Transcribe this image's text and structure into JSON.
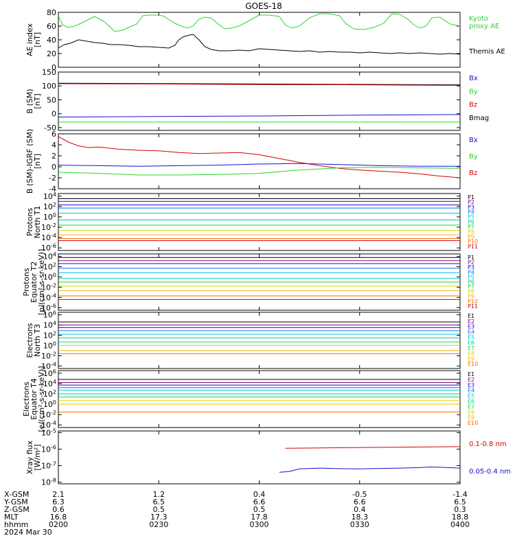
{
  "title": "GOES-18",
  "colors": {
    "black": "#000000",
    "red": "#d40000",
    "green": "#2ad52a",
    "blue": "#1010d0",
    "p_colors": [
      "#000000",
      "#7a007a",
      "#2a00c8",
      "#0070ff",
      "#00c0e0",
      "#00c8a0",
      "#20d040",
      "#d8d800",
      "#f0b400",
      "#ff6a00",
      "#d40000"
    ],
    "xray_red": "#d40000",
    "xray_blue": "#1010d0"
  },
  "time_axis": {
    "range_hours": [
      2.0,
      4.0
    ],
    "ticks_hours": [
      2.0,
      2.5,
      3.0,
      3.5,
      4.0
    ],
    "rows": [
      {
        "label": "X-GSM",
        "values": [
          "2.1",
          "1.2",
          "0.4",
          "-0.5",
          "-1.4"
        ]
      },
      {
        "label": "Y-GSM",
        "values": [
          "6.3",
          "6.5",
          "6.6",
          "6.6",
          "6.5"
        ]
      },
      {
        "label": "Z-GSM",
        "values": [
          "0.6",
          "0.5",
          "0.5",
          "0.4",
          "0.3"
        ]
      },
      {
        "label": "MLT",
        "values": [
          "16.8",
          "17.3",
          "17.8",
          "18.3",
          "18.8"
        ]
      },
      {
        "label": "hhmm",
        "values": [
          "0200",
          "0230",
          "0300",
          "0330",
          "0400"
        ]
      }
    ],
    "date": "2024 Mar 30"
  },
  "chart_data": [
    {
      "type": "line",
      "ylabel": "AE index\n[nT]",
      "ylim": [
        0,
        80
      ],
      "yticks": [
        0,
        20,
        40,
        60,
        80
      ],
      "yticklabels": [
        "0",
        "20",
        "40",
        "60",
        "80"
      ],
      "legend": [
        {
          "text": "Kyoto",
          "color": "#2ad52a"
        },
        {
          "text": "proxy AE",
          "color": "#2ad52a"
        },
        {
          "text": "Themis AE",
          "color": "#000000"
        }
      ],
      "series": [
        {
          "name": "Kyoto proxy AE",
          "color": "#2ad52a",
          "x": [
            2.0,
            2.02,
            2.05,
            2.08,
            2.12,
            2.18,
            2.23,
            2.26,
            2.28,
            2.3,
            2.32,
            2.35,
            2.39,
            2.42,
            2.45,
            2.48,
            2.52,
            2.58,
            2.64,
            2.67,
            2.7,
            2.73,
            2.76,
            2.8,
            2.83,
            2.86,
            2.9,
            2.95,
            3.0,
            3.05,
            3.1,
            3.13,
            3.16,
            3.2,
            3.25,
            3.3,
            3.35,
            3.4,
            3.43,
            3.47,
            3.52,
            3.57,
            3.62,
            3.66,
            3.7,
            3.74,
            3.77,
            3.8,
            3.83,
            3.86,
            3.9,
            3.95,
            4.0
          ],
          "y": [
            75,
            62,
            58,
            60,
            65,
            74,
            66,
            58,
            52,
            53,
            54,
            58,
            63,
            75,
            76,
            76,
            75,
            64,
            57,
            60,
            70,
            73,
            72,
            62,
            56,
            57,
            60,
            68,
            76,
            76,
            74,
            62,
            57,
            60,
            72,
            78,
            78,
            75,
            64,
            56,
            55,
            58,
            64,
            78,
            77,
            70,
            62,
            57,
            60,
            72,
            73,
            63,
            60
          ]
        },
        {
          "name": "Themis AE",
          "color": "#000000",
          "x": [
            2.0,
            2.03,
            2.06,
            2.1,
            2.14,
            2.18,
            2.22,
            2.26,
            2.3,
            2.35,
            2.4,
            2.45,
            2.5,
            2.55,
            2.58,
            2.6,
            2.62,
            2.64,
            2.67,
            2.7,
            2.73,
            2.76,
            2.8,
            2.85,
            2.9,
            2.95,
            3.0,
            3.05,
            3.1,
            3.15,
            3.2,
            3.25,
            3.3,
            3.35,
            3.4,
            3.45,
            3.5,
            3.55,
            3.6,
            3.65,
            3.7,
            3.75,
            3.8,
            3.85,
            3.9,
            3.95,
            4.0
          ],
          "y": [
            28,
            33,
            35,
            40,
            38,
            36,
            35,
            33,
            33,
            32,
            30,
            30,
            29,
            28,
            32,
            40,
            44,
            46,
            48,
            40,
            30,
            26,
            24,
            24,
            25,
            24,
            27,
            26,
            25,
            24,
            23,
            24,
            22,
            23,
            22,
            22,
            21,
            22,
            21,
            20,
            21,
            20,
            21,
            20,
            19,
            20,
            19
          ]
        }
      ]
    },
    {
      "type": "line",
      "ylabel": "B (SM)\n[nT]",
      "ylim": [
        -60,
        150
      ],
      "yticks": [
        -50,
        0,
        50,
        100,
        150
      ],
      "yticklabels": [
        "-50",
        "0",
        "50",
        "100",
        "150"
      ],
      "legend": [
        {
          "text": "Bx",
          "color": "#1010d0"
        },
        {
          "text": "By",
          "color": "#2ad52a"
        },
        {
          "text": "Bz",
          "color": "#d40000"
        },
        {
          "text": "Bmag",
          "color": "#000000"
        }
      ],
      "series": [
        {
          "name": "Bmag",
          "color": "#000000",
          "x": [
            2.0,
            4.0
          ],
          "y": [
            110,
            104
          ]
        },
        {
          "name": "Bz",
          "color": "#d40000",
          "x": [
            2.0,
            2.5,
            3.0,
            3.5,
            4.0
          ],
          "y": [
            108,
            107,
            105,
            104,
            102
          ]
        },
        {
          "name": "Bx",
          "color": "#1010d0",
          "x": [
            2.0,
            2.5,
            3.0,
            3.5,
            4.0
          ],
          "y": [
            -12,
            -10,
            -8,
            -5,
            -3
          ]
        },
        {
          "name": "By",
          "color": "#2ad52a",
          "x": [
            2.0,
            4.0
          ],
          "y": [
            -30,
            -30
          ]
        }
      ]
    },
    {
      "type": "line",
      "ylabel": "B (SM)-IGRF (SM)\n[nT]",
      "ylim": [
        -4,
        6
      ],
      "yticks": [
        -4,
        -2,
        0,
        2,
        4,
        6
      ],
      "yticklabels": [
        "-4",
        "-2",
        "0",
        "2",
        "4",
        "6"
      ],
      "legend": [
        {
          "text": "Bx",
          "color": "#1010d0"
        },
        {
          "text": "By",
          "color": "#2ad52a"
        },
        {
          "text": "Bz",
          "color": "#d40000"
        }
      ],
      "series": [
        {
          "name": "Bz",
          "color": "#d40000",
          "x": [
            2.0,
            2.05,
            2.1,
            2.15,
            2.2,
            2.3,
            2.4,
            2.5,
            2.6,
            2.7,
            2.8,
            2.9,
            3.0,
            3.1,
            3.2,
            3.3,
            3.4,
            3.5,
            3.6,
            3.7,
            3.8,
            3.9,
            4.0
          ],
          "y": [
            5.5,
            4.5,
            3.8,
            3.5,
            3.6,
            3.2,
            3.0,
            2.9,
            2.6,
            2.4,
            2.5,
            2.6,
            2.2,
            1.5,
            0.8,
            0.2,
            -0.3,
            -0.6,
            -0.8,
            -1.0,
            -1.3,
            -1.7,
            -2.0
          ]
        },
        {
          "name": "Bx",
          "color": "#1010d0",
          "x": [
            2.0,
            2.2,
            2.4,
            2.6,
            2.8,
            3.0,
            3.2,
            3.4,
            3.6,
            3.8,
            4.0
          ],
          "y": [
            0.3,
            0.2,
            0.1,
            0.2,
            0.3,
            0.5,
            0.6,
            0.4,
            0.2,
            0.1,
            0.1
          ]
        },
        {
          "name": "By",
          "color": "#2ad52a",
          "x": [
            2.0,
            2.2,
            2.4,
            2.6,
            2.8,
            3.0,
            3.2,
            3.4,
            3.6,
            3.8,
            4.0
          ],
          "y": [
            -1.0,
            -1.2,
            -1.5,
            -1.5,
            -1.4,
            -1.2,
            -0.6,
            -0.2,
            -0.1,
            -0.2,
            -0.3
          ]
        }
      ]
    },
    {
      "type": "line",
      "log_y": true,
      "ylabel": "Protons\nNorth T1",
      "ylim": [
        -6.5,
        4.5
      ],
      "yticks": [
        4,
        2,
        0,
        -2,
        -4,
        -6
      ],
      "yticklabels": [
        "10^4",
        "10^2",
        "10^0",
        "10^-2",
        "10^-4",
        "10^-6"
      ],
      "legend": [
        "P1",
        "P2",
        "P3",
        "P4",
        "P5",
        "P6",
        "P7",
        "P8",
        "P9",
        "P10",
        "P11"
      ],
      "series_log10": [
        3.5,
        3.0,
        2.3,
        1.7,
        0.7,
        -0.6,
        -1.6,
        -2.6,
        -3.5,
        -4.2,
        -4.6
      ]
    },
    {
      "type": "line",
      "log_y": true,
      "ylabel": "Protons\nEquator T2\n[p/(cm²-s-sr-keV)]",
      "ylim": [
        -6.5,
        4.5
      ],
      "yticks": [
        4,
        2,
        0,
        -2,
        -4,
        -6
      ],
      "yticklabels": [
        "10^4",
        "10^2",
        "10^0",
        "10^-2",
        "10^-4",
        "10^-6"
      ],
      "legend": [
        "P1",
        "P2",
        "P3",
        "P4",
        "P5",
        "P6",
        "P7",
        "P8",
        "P9",
        "P10",
        "P11"
      ],
      "series_log10": [
        3.8,
        3.2,
        2.6,
        1.7,
        0.8,
        -0.3,
        -1.0,
        -1.8,
        -2.7,
        -3.7,
        -4.4
      ]
    },
    {
      "type": "line",
      "log_y": true,
      "ylabel": "Electrons\nNorth T3",
      "ylim": [
        -4.5,
        6.5
      ],
      "yticks": [
        6,
        4,
        2,
        0,
        -2,
        -4
      ],
      "yticklabels": [
        "10^6",
        "10^4",
        "10^2",
        "10^0",
        "10^-2",
        "10^-4"
      ],
      "legend": [
        "E1",
        "E2",
        "E3",
        "E4",
        "E5",
        "E6",
        "E7",
        "E8",
        "E9",
        "E10"
      ],
      "series_log10": [
        4.6,
        4.0,
        3.5,
        2.9,
        2.2,
        1.5,
        0.7,
        0.0,
        -1.0,
        -1.6
      ]
    },
    {
      "type": "line",
      "log_y": true,
      "ylabel": "Electrons\nEquator T4\n[e/(cm²-s-sr-keV)]",
      "ylim": [
        -4.5,
        6.5
      ],
      "yticks": [
        6,
        4,
        2,
        0,
        -2,
        -4
      ],
      "yticklabels": [
        "10^6",
        "10^4",
        "10^2",
        "10^0",
        "10^-2",
        "10^-4"
      ],
      "legend": [
        "E1",
        "E2",
        "E3",
        "E4",
        "E5",
        "E6",
        "E7",
        "E8",
        "E9",
        "E10"
      ],
      "series_log10": [
        4.8,
        4.2,
        3.7,
        3.2,
        2.7,
        2.0,
        1.4,
        0.7,
        0.0,
        -1.5
      ]
    },
    {
      "type": "line",
      "log_y": true,
      "ylabel": "Xray flux\n[W/m²]",
      "ylim": [
        -8.1,
        -4.9
      ],
      "yticks": [
        -5,
        -6,
        -7,
        -8
      ],
      "yticklabels": [
        "10^-5",
        "10^-6",
        "10^-7",
        "10^-8"
      ],
      "legend": [
        {
          "text": "0.1-0.8 nm",
          "color": "#d40000"
        },
        {
          "text": "0.05-0.4 nm",
          "color": "#1010d0"
        }
      ],
      "series": [
        {
          "name": "0.1-0.8 nm",
          "color": "#d40000",
          "x": [
            3.13,
            3.3,
            3.5,
            3.7,
            3.9,
            4.0
          ],
          "y": [
            -5.95,
            -5.93,
            -5.9,
            -5.88,
            -5.86,
            -5.85
          ]
        },
        {
          "name": "0.05-0.4 nm",
          "color": "#1010d0",
          "x": [
            3.1,
            3.15,
            3.2,
            3.3,
            3.4,
            3.5,
            3.6,
            3.7,
            3.8,
            3.85,
            3.9,
            4.0
          ],
          "y": [
            -7.4,
            -7.35,
            -7.2,
            -7.15,
            -7.18,
            -7.2,
            -7.17,
            -7.15,
            -7.12,
            -7.08,
            -7.1,
            -7.15
          ]
        }
      ]
    }
  ]
}
